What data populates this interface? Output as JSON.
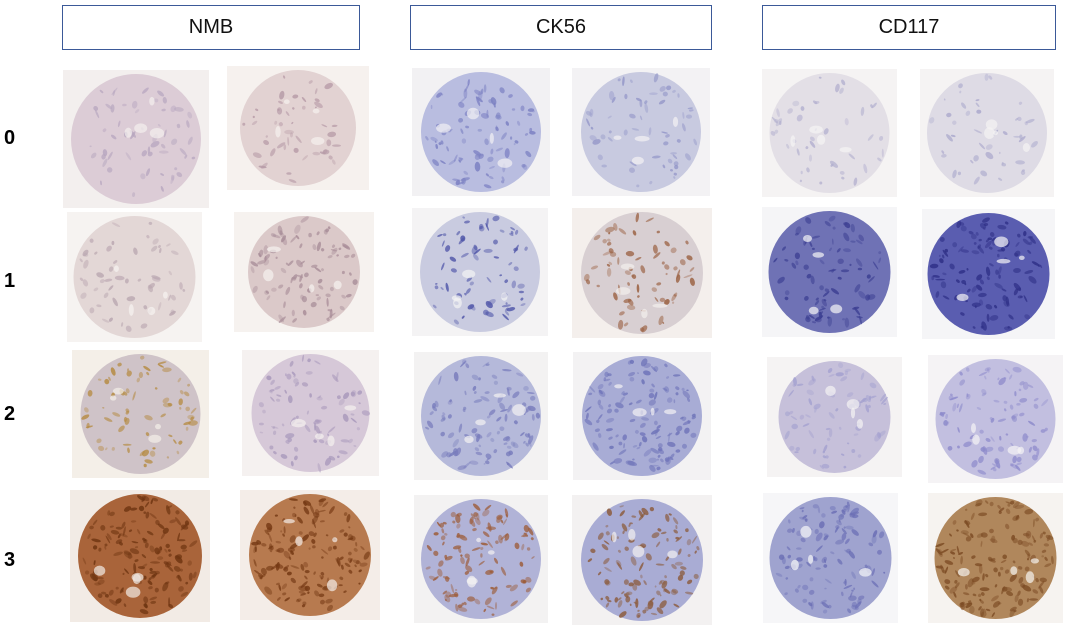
{
  "columns": [
    {
      "label": "NMB"
    },
    {
      "label": "CK56"
    },
    {
      "label": "CD117"
    }
  ],
  "rows": [
    {
      "label": "0"
    },
    {
      "label": "1"
    },
    {
      "label": "2"
    },
    {
      "label": "3"
    }
  ],
  "stain_colors": {
    "hematoxylin_blue": "#7d7fc0",
    "pale_purple": "#d8c8d6",
    "dab_brown": "#8b4a1c",
    "background": "#f4f1ee"
  }
}
